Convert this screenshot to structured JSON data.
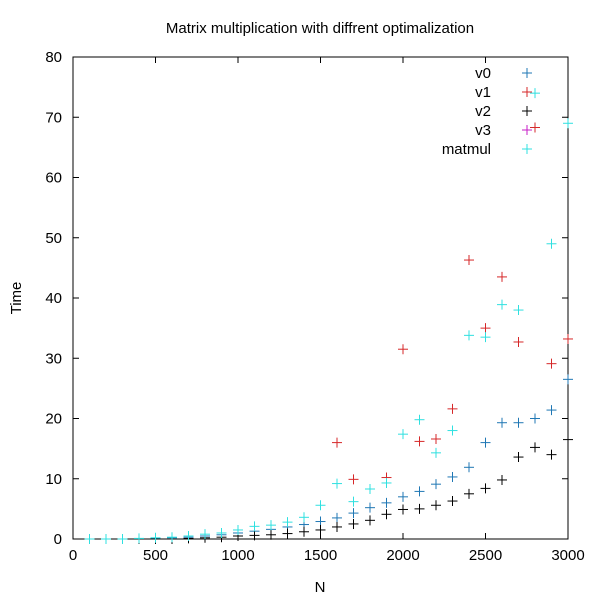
{
  "chart_data": {
    "type": "scatter",
    "title": "Matrix multiplication with diffrent optimalization",
    "xlabel": "N",
    "ylabel": "Time",
    "xlim": [
      0,
      3000
    ],
    "ylim": [
      0,
      80
    ],
    "xticks": [
      "0",
      "500",
      "1000",
      "1500",
      "2000",
      "2500",
      "3000"
    ],
    "yticks": [
      "0",
      "10",
      "20",
      "30",
      "40",
      "50",
      "60",
      "70",
      "80"
    ],
    "grid": false,
    "legend_position": "top-right",
    "marker": "+",
    "series": [
      {
        "name": "v0",
        "color": "#1f77b4",
        "x": [
          100,
          200,
          300,
          400,
          500,
          600,
          700,
          800,
          900,
          1000,
          1100,
          1200,
          1300,
          1400,
          1500,
          1600,
          1700,
          1800,
          1900,
          2000,
          2100,
          2200,
          2300,
          2400,
          2500,
          2600,
          2700,
          2800,
          2900,
          3000
        ],
        "y": [
          0,
          0,
          0,
          0,
          0.1,
          0.2,
          0.3,
          0.5,
          0.7,
          1.0,
          1.3,
          1.6,
          2.0,
          2.4,
          2.9,
          3.5,
          4.3,
          5.2,
          6.0,
          7.0,
          7.9,
          9.1,
          10.3,
          11.9,
          16.0,
          19.3,
          19.3,
          20.0,
          21.4,
          26.5
        ]
      },
      {
        "name": "v1",
        "color": "#d62728",
        "x": [
          1600,
          1700,
          1900,
          2000,
          2100,
          2200,
          2300,
          2400,
          2500,
          2600,
          2700,
          2800,
          2900,
          3000
        ],
        "y": [
          16.0,
          9.9,
          10.2,
          31.5,
          16.2,
          16.6,
          21.6,
          46.3,
          35.0,
          43.5,
          32.7,
          68.3,
          29.1,
          33.2
        ]
      },
      {
        "name": "v2",
        "color": "#000000",
        "x": [
          100,
          200,
          300,
          400,
          500,
          600,
          700,
          800,
          900,
          1000,
          1100,
          1200,
          1300,
          1400,
          1500,
          1600,
          1700,
          1800,
          1900,
          2000,
          2100,
          2200,
          2300,
          2400,
          2500,
          2600,
          2700,
          2800,
          2900,
          3000
        ],
        "y": [
          0,
          0,
          0,
          0,
          0,
          0,
          0.1,
          0.2,
          0.3,
          0.5,
          0.6,
          0.7,
          0.9,
          1.2,
          1.5,
          2.0,
          2.5,
          3.1,
          4.1,
          4.9,
          5.0,
          5.6,
          6.3,
          7.5,
          8.4,
          9.8,
          13.6,
          15.2,
          14.0,
          16.5
        ]
      },
      {
        "name": "v3",
        "color": "#c71ec7",
        "x": [],
        "y": []
      },
      {
        "name": "matmul",
        "color": "#2fe0e0",
        "x": [
          100,
          200,
          300,
          400,
          500,
          600,
          700,
          800,
          900,
          1000,
          1100,
          1200,
          1300,
          1400,
          1500,
          1600,
          1700,
          1800,
          1900,
          2000,
          2100,
          2200,
          2300,
          2400,
          2500,
          2600,
          2700,
          2800,
          2900,
          3000
        ],
        "y": [
          0,
          0,
          0,
          0.1,
          0.2,
          0.3,
          0.5,
          0.8,
          1.0,
          1.5,
          2.1,
          2.3,
          2.8,
          3.6,
          5.6,
          9.2,
          6.2,
          8.3,
          9.3,
          17.4,
          19.8,
          14.3,
          18.0,
          33.8,
          33.5,
          38.9,
          38.0,
          74.0,
          49.0,
          69.0
        ]
      }
    ]
  }
}
